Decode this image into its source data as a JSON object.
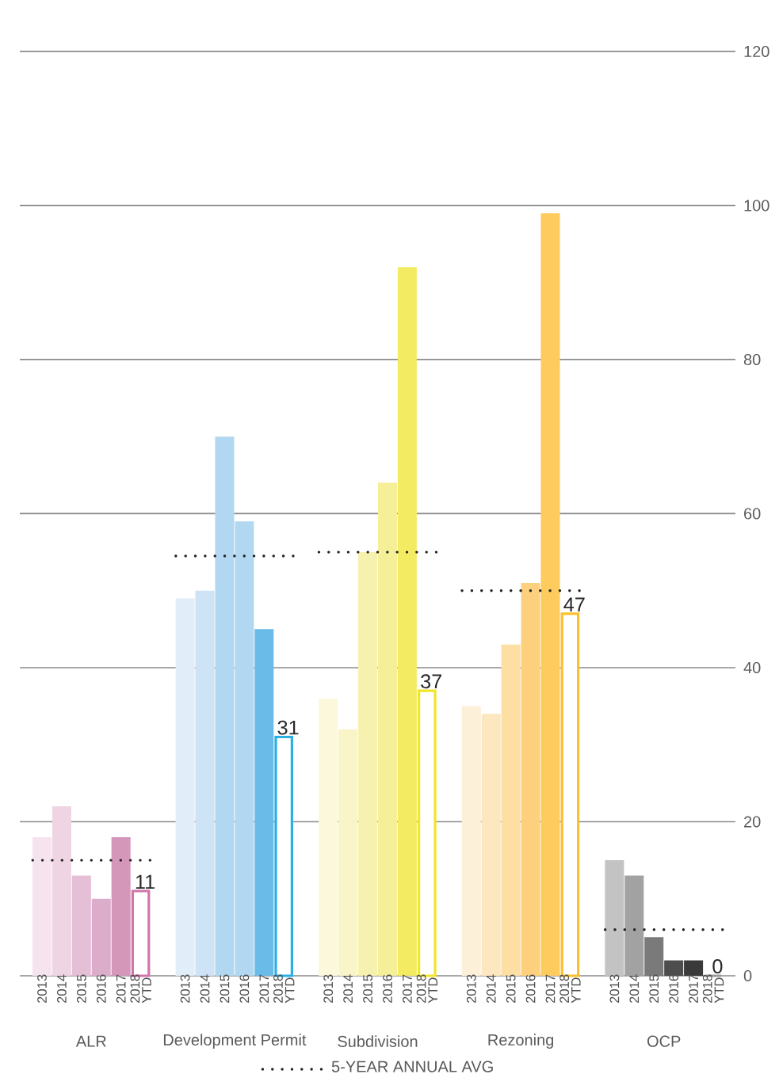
{
  "chart_data": {
    "type": "bar",
    "categories": [
      "ALR",
      "Development Permit",
      "Subdivision",
      "Rezoning",
      "OCP"
    ],
    "series": [
      {
        "name": "2013",
        "colors": [
          "#f5e4ee",
          "#e1edf8",
          "#fbf8dc",
          "#fdf0d8",
          "#c4c3c3"
        ],
        "values": [
          18,
          49,
          36,
          35,
          15
        ]
      },
      {
        "name": "2014",
        "colors": [
          "#efd5e3",
          "#cee3f5",
          "#f9f5c8",
          "#fde7c0",
          "#a3a2a2"
        ],
        "values": [
          22,
          50,
          32,
          34,
          13
        ]
      },
      {
        "name": "2015",
        "colors": [
          "#e5bfd6",
          "#b2d8f1",
          "#f7f1b0",
          "#fddfa4",
          "#7b7a7a"
        ],
        "values": [
          13,
          70,
          55,
          43,
          5
        ]
      },
      {
        "name": "2016",
        "colors": [
          "#dcaccb",
          "#b2d8f1",
          "#f5ef98",
          "#fcd07c",
          "#4e4d4d"
        ],
        "values": [
          10,
          59,
          64,
          51,
          2
        ]
      },
      {
        "name": "2017",
        "colors": [
          "#d496b9",
          "#6bbbe8",
          "#f3ec63",
          "#fdcb5e",
          "#3b3a3a"
        ],
        "values": [
          18,
          45,
          92,
          99,
          2
        ]
      },
      {
        "name": "2018 YTD",
        "colors": [
          "#d175a9",
          "#2ab0e4",
          "#f2e52a",
          "#fbc02d",
          "#9a9999"
        ],
        "values": [
          11,
          31,
          37,
          47,
          0
        ],
        "value_labels": [
          "11",
          "31",
          "37",
          "47",
          "0"
        ]
      }
    ],
    "ref_lines": [
      {
        "axis": "y",
        "value": 15,
        "label": "5-YEAR ANNUAL AVG",
        "color": "#222222",
        "line_style": "dotted"
      },
      {
        "axis": "y",
        "value": 54.5,
        "color": "#222222",
        "line_style": "dotted"
      },
      {
        "axis": "y",
        "value": 55,
        "color": "#222222",
        "line_style": "dotted"
      },
      {
        "axis": "y",
        "value": 50,
        "color": "#222222",
        "line_style": "dotted"
      },
      {
        "axis": "y",
        "value": 6,
        "color": "#222222",
        "line_style": "dotted"
      }
    ],
    "ylim": [
      0,
      120
    ],
    "yticks": [
      0,
      20,
      40,
      60,
      80,
      100,
      120
    ],
    "grid": "y",
    "legend": "bottom"
  }
}
